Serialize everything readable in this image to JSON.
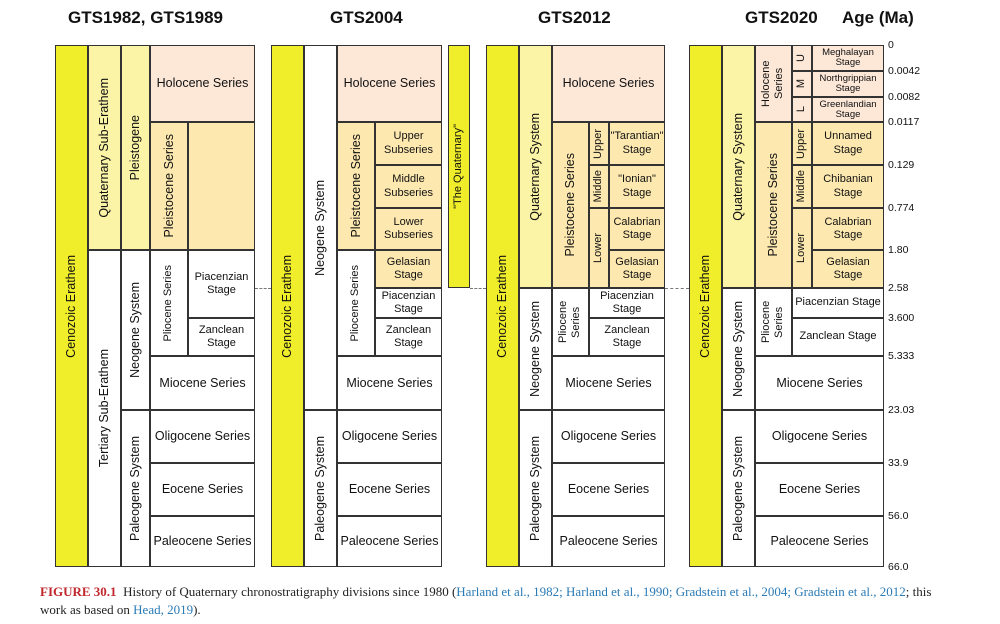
{
  "headers": {
    "gts1982": "GTS1982, GTS1989",
    "gts2004": "GTS2004",
    "gts2012": "GTS2012",
    "gts2020": "GTS2020",
    "age": "Age (Ma)"
  },
  "ages": [
    "0",
    "0.0042",
    "0.0082",
    "0.0117",
    "0.129",
    "0.774",
    "1.80",
    "2.58",
    "3.600",
    "5.333",
    "23.03",
    "33.9",
    "56.0",
    "66.0"
  ],
  "col1982": {
    "erathem": "Cenozoic Erathem",
    "quat_sub": "Quaternary Sub-Erathem",
    "tert_sub": "Tertiary Sub-Erathem",
    "pleistogene": "Pleistogene",
    "neogene": "Neogene System",
    "paleogene": "Paleogene System",
    "holocene": "Holocene Series",
    "pleistocene": "Pleistocene Series",
    "pliocene": "Pliocene Series",
    "piacenzian": "Piacenzian Stage",
    "zanclean": "Zanclean Stage",
    "miocene": "Miocene Series",
    "oligocene": "Oligocene Series",
    "eocene": "Eocene Series",
    "paleocene": "Paleocene Series"
  },
  "col2004": {
    "erathem": "Cenozoic Erathem",
    "neogene": "Neogene System",
    "paleogene": "Paleogene System",
    "holocene": "Holocene Series",
    "pleistocene": "Pleistocene Series",
    "upper": "Upper Subseries",
    "middle": "Middle Subseries",
    "lower": "Lower Subseries",
    "gelasian": "Gelasian Stage",
    "pliocene": "Pliocene Series",
    "piacenzian": "Piacenzian Stage",
    "zanclean": "Zanclean Stage",
    "miocene": "Miocene Series",
    "oligocene": "Oligocene Series",
    "eocene": "Eocene Series",
    "paleocene": "Paleocene Series",
    "the_quaternary": "\"The Quaternary\""
  },
  "col2012": {
    "erathem": "Cenozoic Erathem",
    "quaternary": "Quaternary System",
    "neogene": "Neogene System",
    "paleogene": "Paleogene System",
    "holocene": "Holocene Series",
    "pleistocene": "Pleistocene Series",
    "upper": "Upper",
    "middle": "Middle",
    "lower": "Lower",
    "tarantian": "\"Tarantian\" Stage",
    "ionian": "\"Ionian\" Stage",
    "calabrian": "Calabrian Stage",
    "gelasian": "Gelasian Stage",
    "pliocene": "Pliocene Series",
    "piacenzian": "Piacenzian Stage",
    "zanclean": "Zanclean Stage",
    "miocene": "Miocene Series",
    "oligocene": "Oligocene Series",
    "eocene": "Eocene Series",
    "paleocene": "Paleocene Series"
  },
  "col2020": {
    "erathem": "Cenozoic Erathem",
    "quaternary": "Quaternary System",
    "neogene": "Neogene System",
    "paleogene": "Paleogene System",
    "holocene": "Holocene Series",
    "u": "U",
    "m": "M",
    "l": "L",
    "meghalayan": "Meghalayan Stage",
    "northgrippian": "Northgrippian Stage",
    "greenlandian": "Greenlandian Stage",
    "pleistocene": "Pleistocene Series",
    "upper": "Upper",
    "middle": "Middle",
    "lower": "Lower",
    "unnamed": "Unnamed Stage",
    "chibanian": "Chibanian Stage",
    "calabrian": "Calabrian Stage",
    "gelasian": "Gelasian Stage",
    "pliocene": "Pliocene Series",
    "piacenzian": "Piacenzian Stage",
    "zanclean": "Zanclean Stage",
    "miocene": "Miocene Series",
    "oligocene": "Oligocene Series",
    "eocene": "Eocene Series",
    "paleocene": "Paleocene Series"
  },
  "caption": {
    "label": "FIGURE 30.1",
    "text": "History of Quaternary chronostratigraphy divisions since 1980 (",
    "refs": "Harland et al., 1982; Harland et al., 1990; Gradstein et al., 2004; Gradstein et al., 2012",
    "mid": "; this work as based on ",
    "ref2": "Head, 2019",
    "end": ")."
  },
  "colors": {
    "erathem_yellow": "#f0ee2a",
    "system_light_yellow": "#fbf3a6",
    "holocene_pink": "#fde8d8",
    "pleistocene_amber": "#fde9b0",
    "caption_label": "#c1272d",
    "caption_ref": "#2a7ab5"
  }
}
